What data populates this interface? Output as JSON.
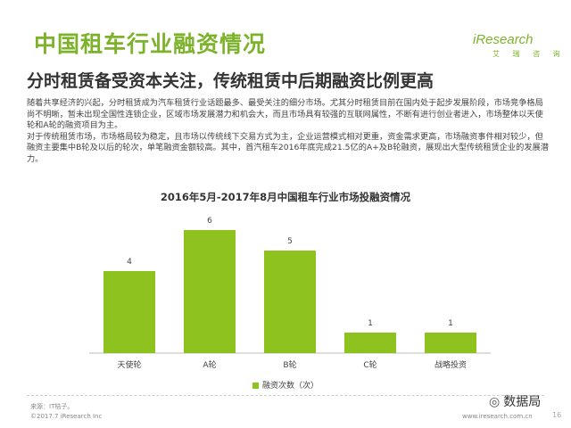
{
  "header": {
    "title": "中国租车行业融资情况",
    "logo_text": "iResearch",
    "logo_sub": "艾 瑞 咨 询"
  },
  "subtitle": "分时租赁备受资本关注，传统租赁中后期融资比例更高",
  "body": {
    "p1": "随着共享经济的兴起，分时租赁成为汽车租赁行业话题最多、最受关注的细分市场。尤其分时租赁目前在国内处于起步发展阶段，市场竞争格局尚不明晰，暂未出现全国性连锁企业，区域市场发展潜力和机会大，而且市场具有较强的互联网属性，不断有进行创业者进入，市场整体以天使轮和A轮的融资项目为主。",
    "p2": "对于传统租赁市场，市场格局较为稳定，且市场以传统线下交易方式为主，企业运营模式相对更重，资金需求更高，市场融资事件相对较少，但融资主要集中B轮及以后的轮次，单笔融资金额较高。其中，首汽租车2016年底完成21.5亿的A+及B轮融资，展现出大型传统租赁企业的发展潜力。"
  },
  "chart_data": {
    "type": "bar",
    "title": "2016年5月-2017年8月中国租车行业市场投融资情况",
    "categories": [
      "天使轮",
      "A轮",
      "B轮",
      "C轮",
      "战略投资"
    ],
    "series": [
      {
        "name": "融资次数（次）",
        "values": [
          4,
          6,
          5,
          1,
          1
        ]
      }
    ],
    "ylim": [
      0,
      6
    ],
    "grid": false,
    "legend": "bottom",
    "bar_color": "#8dc21f"
  },
  "footer": {
    "source": "来源：IT桔子。",
    "copyright": "©2017.7 iResearch Inc",
    "site": "www.iresearch.com.cn",
    "page_number": "16",
    "wechat_label": "数据局"
  }
}
